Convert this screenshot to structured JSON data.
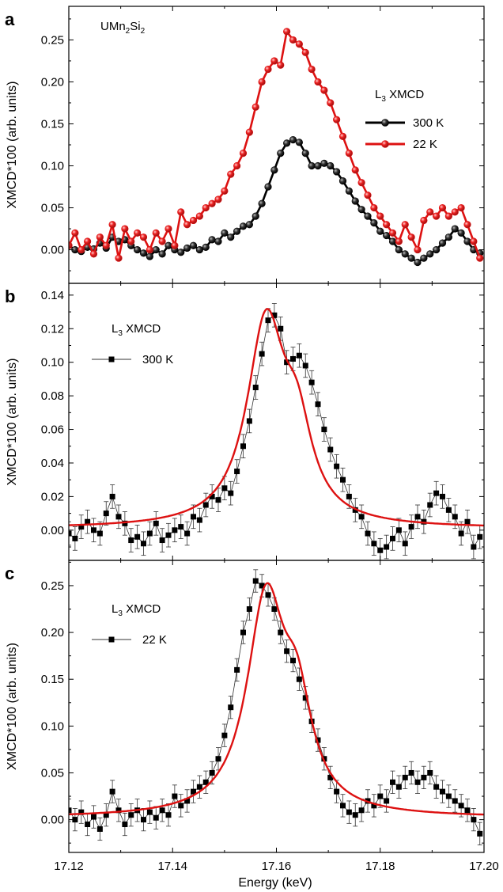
{
  "figure": {
    "xlabel": "Energy (keV)",
    "x_ticks": [
      "17.12",
      "17.14",
      "17.16",
      "17.18",
      "17.20"
    ]
  },
  "chart_data": [
    {
      "type": "line",
      "panel_label": "a",
      "sample_label_parts": [
        "UMn",
        "2",
        "Si",
        "2"
      ],
      "legend_title_parts": [
        "L",
        "3",
        " XMCD"
      ],
      "xlabel": "Energy (keV)",
      "ylabel": "XMCD*100 (arb. units)",
      "xlim": [
        17.12,
        17.2
      ],
      "ylim": [
        -0.04,
        0.29
      ],
      "y_ticks": [
        "0.00",
        "0.05",
        "0.10",
        "0.15",
        "0.20",
        "0.25"
      ],
      "colors": {
        "300 K": "#000000",
        "22 K": "#dd1111"
      },
      "series": [
        {
          "name": "300 K",
          "x": [
            17.12,
            17.1212,
            17.1224,
            17.1236,
            17.1248,
            17.126,
            17.1272,
            17.1284,
            17.1296,
            17.1308,
            17.132,
            17.1332,
            17.1344,
            17.1356,
            17.1368,
            17.138,
            17.1392,
            17.1404,
            17.1416,
            17.1428,
            17.144,
            17.1452,
            17.1464,
            17.1476,
            17.1488,
            17.15,
            17.1512,
            17.1524,
            17.1536,
            17.1548,
            17.156,
            17.1572,
            17.1584,
            17.1596,
            17.1608,
            17.162,
            17.1632,
            17.1644,
            17.1656,
            17.1668,
            17.168,
            17.1692,
            17.1704,
            17.1716,
            17.1728,
            17.174,
            17.1752,
            17.1764,
            17.1776,
            17.1788,
            17.18,
            17.1812,
            17.1824,
            17.1836,
            17.1848,
            17.186,
            17.1872,
            17.1884,
            17.1896,
            17.1908,
            17.192,
            17.1932,
            17.1944,
            17.1956,
            17.1968,
            17.198,
            17.1992
          ],
          "values": [
            0.005,
            0.0,
            -0.002,
            0.003,
            0.001,
            0.008,
            0.002,
            0.015,
            0.01,
            0.012,
            0.005,
            0.0,
            -0.004,
            -0.008,
            0.0,
            -0.005,
            0.005,
            0.0,
            -0.003,
            0.002,
            0.005,
            0.0,
            0.003,
            0.012,
            0.01,
            0.02,
            0.015,
            0.022,
            0.028,
            0.03,
            0.04,
            0.055,
            0.075,
            0.095,
            0.115,
            0.127,
            0.131,
            0.128,
            0.115,
            0.1,
            0.1,
            0.103,
            0.1,
            0.093,
            0.082,
            0.07,
            0.058,
            0.048,
            0.04,
            0.032,
            0.022,
            0.017,
            0.01,
            0.0,
            -0.005,
            -0.01,
            -0.015,
            -0.01,
            -0.005,
            0.0,
            0.008,
            0.015,
            0.025,
            0.02,
            0.01,
            0.0,
            -0.004
          ]
        },
        {
          "name": "22 K",
          "x": [
            17.12,
            17.1212,
            17.1224,
            17.1236,
            17.1248,
            17.126,
            17.1272,
            17.1284,
            17.1296,
            17.1308,
            17.132,
            17.1332,
            17.1344,
            17.1356,
            17.1368,
            17.138,
            17.1392,
            17.1404,
            17.1416,
            17.1428,
            17.144,
            17.1452,
            17.1464,
            17.1476,
            17.1488,
            17.15,
            17.1512,
            17.1524,
            17.1536,
            17.1548,
            17.156,
            17.1572,
            17.1584,
            17.1596,
            17.1608,
            17.162,
            17.1632,
            17.1644,
            17.1656,
            17.1668,
            17.168,
            17.1692,
            17.1704,
            17.1716,
            17.1728,
            17.174,
            17.1752,
            17.1764,
            17.1776,
            17.1788,
            17.18,
            17.1812,
            17.1824,
            17.1836,
            17.1848,
            17.186,
            17.1872,
            17.1884,
            17.1896,
            17.1908,
            17.192,
            17.1932,
            17.1944,
            17.1956,
            17.1968,
            17.198,
            17.1992
          ],
          "values": [
            0.005,
            0.02,
            0.0,
            0.01,
            -0.005,
            0.015,
            0.005,
            0.03,
            -0.01,
            0.025,
            0.01,
            0.02,
            0.015,
            0.0,
            0.02,
            0.01,
            0.025,
            0.005,
            0.045,
            0.03,
            0.035,
            0.04,
            0.05,
            0.055,
            0.06,
            0.07,
            0.09,
            0.1,
            0.115,
            0.14,
            0.17,
            0.2,
            0.215,
            0.225,
            0.22,
            0.26,
            0.25,
            0.245,
            0.235,
            0.215,
            0.2,
            0.19,
            0.175,
            0.155,
            0.135,
            0.115,
            0.095,
            0.08,
            0.065,
            0.05,
            0.04,
            0.03,
            0.02,
            0.01,
            0.03,
            0.015,
            0.0,
            0.035,
            0.045,
            0.04,
            0.05,
            0.04,
            0.045,
            0.05,
            0.03,
            0.01,
            -0.01
          ]
        }
      ]
    },
    {
      "type": "scatter",
      "panel_label": "b",
      "legend_title_parts": [
        "L",
        "3",
        " XMCD"
      ],
      "xlabel": "Energy (keV)",
      "ylabel": "XMCD*100 (arb. units)",
      "xlim": [
        17.12,
        17.2
      ],
      "ylim": [
        -0.018,
        0.147
      ],
      "y_ticks": [
        "0.00",
        "0.02",
        "0.04",
        "0.06",
        "0.08",
        "0.10",
        "0.12",
        "0.14"
      ],
      "colors": {
        "data": "#000000",
        "fit": "#dd1111"
      },
      "error_bar": 0.007,
      "series": [
        {
          "name": "300 K",
          "role": "data",
          "x": [
            17.12,
            17.1212,
            17.1224,
            17.1236,
            17.1248,
            17.126,
            17.1272,
            17.1284,
            17.1296,
            17.1308,
            17.132,
            17.1332,
            17.1344,
            17.1356,
            17.1368,
            17.138,
            17.1392,
            17.1404,
            17.1416,
            17.1428,
            17.144,
            17.1452,
            17.1464,
            17.1476,
            17.1488,
            17.15,
            17.1512,
            17.1524,
            17.1536,
            17.1548,
            17.156,
            17.1572,
            17.1584,
            17.1596,
            17.1608,
            17.162,
            17.1632,
            17.1644,
            17.1656,
            17.1668,
            17.168,
            17.1692,
            17.1704,
            17.1716,
            17.1728,
            17.174,
            17.1752,
            17.1764,
            17.1776,
            17.1788,
            17.18,
            17.1812,
            17.1824,
            17.1836,
            17.1848,
            17.186,
            17.1872,
            17.1884,
            17.1896,
            17.1908,
            17.192,
            17.1932,
            17.1944,
            17.1956,
            17.1968,
            17.198,
            17.1992
          ],
          "values": [
            -0.002,
            -0.005,
            0.002,
            0.005,
            0.0,
            -0.002,
            0.01,
            0.02,
            0.008,
            0.004,
            -0.006,
            -0.004,
            -0.008,
            -0.002,
            0.004,
            -0.006,
            -0.003,
            0.0,
            0.002,
            -0.002,
            0.008,
            0.006,
            0.015,
            0.02,
            0.018,
            0.025,
            0.022,
            0.035,
            0.05,
            0.065,
            0.085,
            0.105,
            0.125,
            0.128,
            0.12,
            0.1,
            0.102,
            0.104,
            0.098,
            0.088,
            0.075,
            0.06,
            0.048,
            0.038,
            0.03,
            0.02,
            0.012,
            0.008,
            -0.002,
            -0.008,
            -0.012,
            -0.01,
            -0.005,
            0.0,
            -0.008,
            0.002,
            0.008,
            0.005,
            0.015,
            0.022,
            0.02,
            0.012,
            0.008,
            -0.002,
            0.005,
            -0.01,
            -0.004
          ]
        },
        {
          "name": "fit",
          "role": "fit",
          "model": "lorentzian-pair",
          "baseline": 0.001,
          "peaks": [
            [
              0.119,
              17.158,
              0.0045
            ],
            [
              0.045,
              17.164,
              0.0035
            ]
          ]
        }
      ]
    },
    {
      "type": "scatter",
      "panel_label": "c",
      "legend_title_parts": [
        "L",
        "3",
        " XMCD"
      ],
      "xlabel": "Energy (keV)",
      "ylabel": "XMCD*100 (arb. units)",
      "xlim": [
        17.12,
        17.2
      ],
      "ylim": [
        -0.035,
        0.277
      ],
      "y_ticks": [
        "0.00",
        "0.05",
        "0.10",
        "0.15",
        "0.20",
        "0.25"
      ],
      "colors": {
        "data": "#000000",
        "fit": "#dd1111"
      },
      "error_bar": 0.012,
      "series": [
        {
          "name": "22 K",
          "role": "data",
          "x": [
            17.12,
            17.1212,
            17.1224,
            17.1236,
            17.1248,
            17.126,
            17.1272,
            17.1284,
            17.1296,
            17.1308,
            17.132,
            17.1332,
            17.1344,
            17.1356,
            17.1368,
            17.138,
            17.1392,
            17.1404,
            17.1416,
            17.1428,
            17.144,
            17.1452,
            17.1464,
            17.1476,
            17.1488,
            17.15,
            17.1512,
            17.1524,
            17.1536,
            17.1548,
            17.156,
            17.1572,
            17.1584,
            17.1596,
            17.1608,
            17.162,
            17.1632,
            17.1644,
            17.1656,
            17.1668,
            17.168,
            17.1692,
            17.1704,
            17.1716,
            17.1728,
            17.174,
            17.1752,
            17.1764,
            17.1776,
            17.1788,
            17.18,
            17.1812,
            17.1824,
            17.1836,
            17.1848,
            17.186,
            17.1872,
            17.1884,
            17.1896,
            17.1908,
            17.192,
            17.1932,
            17.1944,
            17.1956,
            17.1968,
            17.198,
            17.1992
          ],
          "values": [
            0.01,
            0.0,
            0.008,
            -0.005,
            0.003,
            -0.01,
            0.005,
            0.03,
            0.01,
            -0.005,
            0.005,
            0.01,
            0.0,
            0.008,
            0.002,
            0.01,
            0.005,
            0.025,
            0.015,
            0.02,
            0.03,
            0.035,
            0.04,
            0.05,
            0.065,
            0.09,
            0.12,
            0.16,
            0.2,
            0.225,
            0.255,
            0.25,
            0.24,
            0.225,
            0.2,
            0.18,
            0.17,
            0.15,
            0.13,
            0.105,
            0.085,
            0.065,
            0.045,
            0.03,
            0.015,
            0.008,
            0.005,
            0.01,
            0.02,
            0.015,
            0.025,
            0.02,
            0.04,
            0.035,
            0.045,
            0.05,
            0.04,
            0.045,
            0.05,
            0.035,
            0.03,
            0.025,
            0.02,
            0.015,
            0.01,
            0.0,
            -0.015
          ]
        },
        {
          "name": "fit",
          "role": "fit",
          "model": "lorentzian-pair",
          "baseline": 0.002,
          "peaks": [
            [
              0.226,
              17.158,
              0.0045
            ],
            [
              0.094,
              17.164,
              0.0035
            ]
          ]
        }
      ]
    }
  ]
}
